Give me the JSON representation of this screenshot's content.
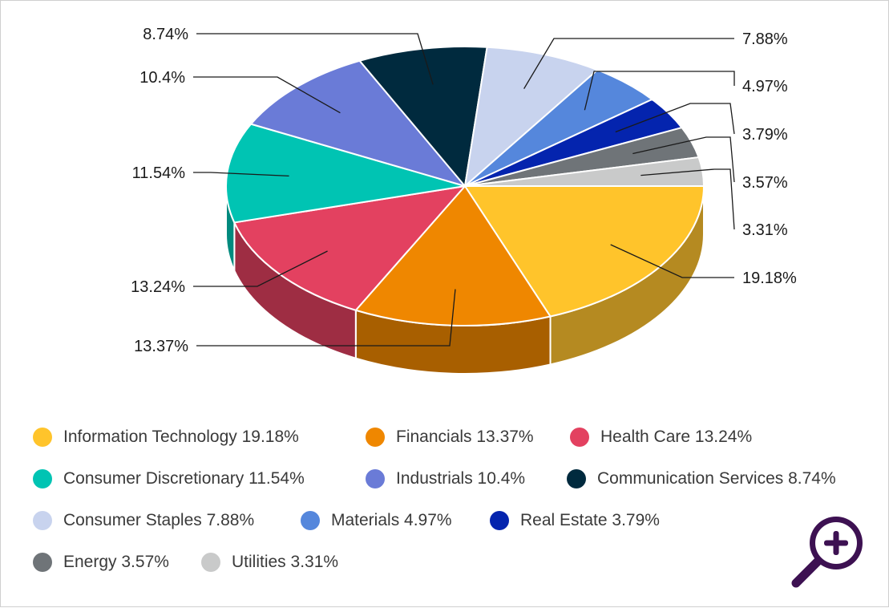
{
  "chart_data": {
    "type": "pie",
    "title": "",
    "style": "3d",
    "slices": [
      {
        "name": "Information Technology",
        "value": 19.18,
        "label": "19.18%",
        "color": "#FFC42B",
        "side_color": "#B58A21"
      },
      {
        "name": "Financials",
        "value": 13.37,
        "label": "13.37%",
        "color": "#EF8700",
        "side_color": "#A85F00"
      },
      {
        "name": "Health Care",
        "value": 13.24,
        "label": "13.24%",
        "color": "#E34160",
        "side_color": "#9E2D43"
      },
      {
        "name": "Consumer Discretionary",
        "value": 11.54,
        "label": "11.54%",
        "color": "#00C4B3",
        "side_color": "#008A7E"
      },
      {
        "name": "Industrials",
        "value": 10.4,
        "label": "10.4%",
        "color": "#6A7BD7",
        "side_color": "#4A5697"
      },
      {
        "name": "Communication Services",
        "value": 8.74,
        "label": "8.74%",
        "color": "#002A3E",
        "side_color": "#001D2B"
      },
      {
        "name": "Consumer Staples",
        "value": 7.88,
        "label": "7.88%",
        "color": "#C8D3EE",
        "side_color": "#8D95A8"
      },
      {
        "name": "Materials",
        "value": 4.97,
        "label": "4.97%",
        "color": "#5587DC",
        "side_color": "#3C5F9B"
      },
      {
        "name": "Real Estate",
        "value": 3.79,
        "label": "3.79%",
        "color": "#0424AE",
        "side_color": "#031A7A"
      },
      {
        "name": "Energy",
        "value": 3.57,
        "label": "3.57%",
        "color": "#6F7478",
        "side_color": "#4E5254"
      },
      {
        "name": "Utilities",
        "value": 3.31,
        "label": "3.31%",
        "color": "#C9CACA",
        "side_color": "#8E8F8F"
      }
    ],
    "legend": [
      {
        "text": "Information Technology 19.18%",
        "color": "#FFC42B"
      },
      {
        "text": "Financials 13.37%",
        "color": "#EF8700"
      },
      {
        "text": "Health Care 13.24%",
        "color": "#E34160"
      },
      {
        "text": "Consumer Discretionary 11.54%",
        "color": "#00C4B3"
      },
      {
        "text": "Industrials 10.4%",
        "color": "#6A7BD7"
      },
      {
        "text": "Communication Services 8.74%",
        "color": "#002A3E"
      },
      {
        "text": "Consumer Staples 7.88%",
        "color": "#C8D3EE"
      },
      {
        "text": "Materials 4.97%",
        "color": "#5587DC"
      },
      {
        "text": "Real Estate 3.79%",
        "color": "#0424AE"
      },
      {
        "text": "Energy 3.57%",
        "color": "#6F7478"
      },
      {
        "text": "Utilities 3.31%",
        "color": "#C9CACA"
      }
    ],
    "legend_position": "bottom"
  },
  "zoom_button": {
    "icon": "zoom-in-icon",
    "color": "#3D1152"
  }
}
